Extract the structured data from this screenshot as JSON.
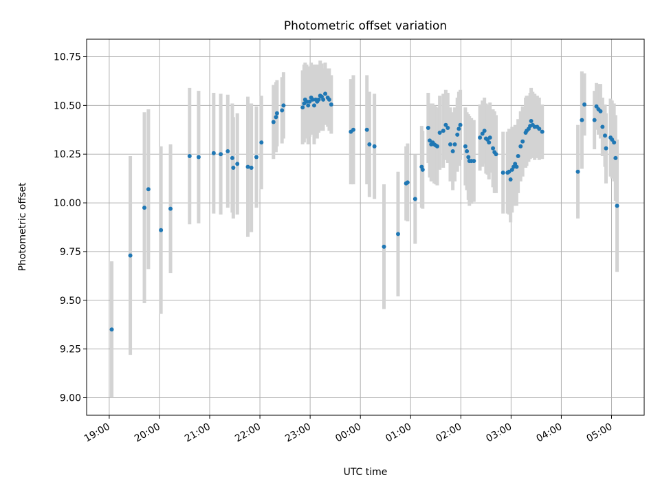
{
  "chart_data": {
    "type": "scatter",
    "title": "Photometric offset variation",
    "xlabel": "UTC time",
    "ylabel": "Photometric offset",
    "xlim": [
      -0.45,
      10.65
    ],
    "ylim": [
      8.91,
      10.84
    ],
    "grid": true,
    "colors": {
      "point": "#1f77b4",
      "errorbar": "#d3d3d3",
      "grid": "#b0b0b0"
    },
    "x_ticks": [
      {
        "v": 0,
        "label": "19:00"
      },
      {
        "v": 1,
        "label": "20:00"
      },
      {
        "v": 2,
        "label": "21:00"
      },
      {
        "v": 3,
        "label": "22:00"
      },
      {
        "v": 4,
        "label": "23:00"
      },
      {
        "v": 5,
        "label": "00:00"
      },
      {
        "v": 6,
        "label": "01:00"
      },
      {
        "v": 7,
        "label": "02:00"
      },
      {
        "v": 8,
        "label": "03:00"
      },
      {
        "v": 9,
        "label": "04:00"
      },
      {
        "v": 10,
        "label": "05:00"
      }
    ],
    "y_ticks": [
      {
        "v": 9.0,
        "label": "9.00"
      },
      {
        "v": 9.25,
        "label": "9.25"
      },
      {
        "v": 9.5,
        "label": "9.50"
      },
      {
        "v": 9.75,
        "label": "9.75"
      },
      {
        "v": 10.0,
        "label": "10.00"
      },
      {
        "v": 10.25,
        "label": "10.25"
      },
      {
        "v": 10.5,
        "label": "10.50"
      },
      {
        "v": 10.75,
        "label": "10.75"
      }
    ],
    "points": [
      [
        0.05,
        9.35,
        0.35
      ],
      [
        0.42,
        9.73,
        0.51
      ],
      [
        0.7,
        9.975,
        0.49
      ],
      [
        0.78,
        10.07,
        0.41
      ],
      [
        1.03,
        9.86,
        0.43
      ],
      [
        1.22,
        9.97,
        0.33
      ],
      [
        1.6,
        10.24,
        0.35
      ],
      [
        1.78,
        10.235,
        0.34
      ],
      [
        2.08,
        10.255,
        0.31
      ],
      [
        2.22,
        10.25,
        0.31
      ],
      [
        2.36,
        10.265,
        0.29
      ],
      [
        2.45,
        10.23,
        0.28
      ],
      [
        2.47,
        10.18,
        0.26
      ],
      [
        2.55,
        10.2,
        0.26
      ],
      [
        2.76,
        10.185,
        0.36
      ],
      [
        2.83,
        10.18,
        0.33
      ],
      [
        2.93,
        10.235,
        0.26
      ],
      [
        3.03,
        10.31,
        0.24
      ],
      [
        3.27,
        10.415,
        0.19
      ],
      [
        3.32,
        10.44,
        0.18
      ],
      [
        3.34,
        10.46,
        0.17
      ],
      [
        3.44,
        10.475,
        0.17
      ],
      [
        3.47,
        10.5,
        0.17
      ],
      [
        3.85,
        10.49,
        0.19
      ],
      [
        3.88,
        10.51,
        0.2
      ],
      [
        3.9,
        10.53,
        0.19
      ],
      [
        3.93,
        10.52,
        0.19
      ],
      [
        3.96,
        10.5,
        0.2
      ],
      [
        3.99,
        10.52,
        0.18
      ],
      [
        4.02,
        10.54,
        0.18
      ],
      [
        4.05,
        10.53,
        0.18
      ],
      [
        4.08,
        10.5,
        0.2
      ],
      [
        4.11,
        10.53,
        0.18
      ],
      [
        4.14,
        10.52,
        0.19
      ],
      [
        4.17,
        10.53,
        0.17
      ],
      [
        4.2,
        10.55,
        0.18
      ],
      [
        4.23,
        10.545,
        0.17
      ],
      [
        4.26,
        10.53,
        0.16
      ],
      [
        4.3,
        10.56,
        0.16
      ],
      [
        4.35,
        10.54,
        0.15
      ],
      [
        4.38,
        10.53,
        0.16
      ],
      [
        4.42,
        10.505,
        0.15
      ],
      [
        4.81,
        10.365,
        0.27
      ],
      [
        4.86,
        10.375,
        0.28
      ],
      [
        5.13,
        10.375,
        0.28
      ],
      [
        5.18,
        10.3,
        0.27
      ],
      [
        5.28,
        10.29,
        0.27
      ],
      [
        5.47,
        9.775,
        0.32
      ],
      [
        5.75,
        9.84,
        0.32
      ],
      [
        5.91,
        10.1,
        0.19
      ],
      [
        5.94,
        10.105,
        0.2
      ],
      [
        6.09,
        10.02,
        0.23
      ],
      [
        6.22,
        10.185,
        0.21
      ],
      [
        6.24,
        10.17,
        0.2
      ],
      [
        6.35,
        10.385,
        0.18
      ],
      [
        6.38,
        10.32,
        0.19
      ],
      [
        6.41,
        10.3,
        0.19
      ],
      [
        6.44,
        10.31,
        0.2
      ],
      [
        6.47,
        10.3,
        0.2
      ],
      [
        6.5,
        10.295,
        0.2
      ],
      [
        6.53,
        10.29,
        0.2
      ],
      [
        6.58,
        10.36,
        0.19
      ],
      [
        6.65,
        10.37,
        0.19
      ],
      [
        6.7,
        10.4,
        0.18
      ],
      [
        6.74,
        10.385,
        0.18
      ],
      [
        6.79,
        10.3,
        0.19
      ],
      [
        6.84,
        10.265,
        0.2
      ],
      [
        6.88,
        10.3,
        0.19
      ],
      [
        6.93,
        10.35,
        0.19
      ],
      [
        6.96,
        10.38,
        0.19
      ],
      [
        6.99,
        10.4,
        0.18
      ],
      [
        7.09,
        10.29,
        0.2
      ],
      [
        7.12,
        10.265,
        0.2
      ],
      [
        7.15,
        10.235,
        0.22
      ],
      [
        7.17,
        10.215,
        0.23
      ],
      [
        7.21,
        10.215,
        0.22
      ],
      [
        7.26,
        10.215,
        0.21
      ],
      [
        7.38,
        10.335,
        0.17
      ],
      [
        7.43,
        10.355,
        0.17
      ],
      [
        7.47,
        10.37,
        0.17
      ],
      [
        7.5,
        10.33,
        0.18
      ],
      [
        7.53,
        10.325,
        0.18
      ],
      [
        7.56,
        10.31,
        0.19
      ],
      [
        7.58,
        10.335,
        0.18
      ],
      [
        7.64,
        10.28,
        0.2
      ],
      [
        7.67,
        10.26,
        0.21
      ],
      [
        7.7,
        10.25,
        0.2
      ],
      [
        7.84,
        10.155,
        0.21
      ],
      [
        7.93,
        10.155,
        0.21
      ],
      [
        7.96,
        10.16,
        0.22
      ],
      [
        7.99,
        10.12,
        0.22
      ],
      [
        8.02,
        10.17,
        0.22
      ],
      [
        8.05,
        10.185,
        0.2
      ],
      [
        8.08,
        10.2,
        0.2
      ],
      [
        8.11,
        10.185,
        0.2
      ],
      [
        8.14,
        10.24,
        0.19
      ],
      [
        8.19,
        10.29,
        0.18
      ],
      [
        8.23,
        10.315,
        0.18
      ],
      [
        8.29,
        10.36,
        0.18
      ],
      [
        8.31,
        10.37,
        0.18
      ],
      [
        8.35,
        10.38,
        0.17
      ],
      [
        8.38,
        10.395,
        0.17
      ],
      [
        8.4,
        10.42,
        0.17
      ],
      [
        8.43,
        10.4,
        0.17
      ],
      [
        8.47,
        10.39,
        0.17
      ],
      [
        8.52,
        10.39,
        0.16
      ],
      [
        8.56,
        10.38,
        0.16
      ],
      [
        8.62,
        10.365,
        0.14
      ],
      [
        9.33,
        10.16,
        0.24
      ],
      [
        9.41,
        10.425,
        0.25
      ],
      [
        9.46,
        10.505,
        0.16
      ],
      [
        9.66,
        10.425,
        0.15
      ],
      [
        9.7,
        10.495,
        0.12
      ],
      [
        9.74,
        10.48,
        0.13
      ],
      [
        9.78,
        10.47,
        0.14
      ],
      [
        9.82,
        10.39,
        0.15
      ],
      [
        9.87,
        10.345,
        0.16
      ],
      [
        9.89,
        10.28,
        0.18
      ],
      [
        9.98,
        10.335,
        0.2
      ],
      [
        10.01,
        10.325,
        0.2
      ],
      [
        10.05,
        10.31,
        0.2
      ],
      [
        10.08,
        10.23,
        0.22
      ],
      [
        10.11,
        9.985,
        0.34
      ]
    ]
  }
}
